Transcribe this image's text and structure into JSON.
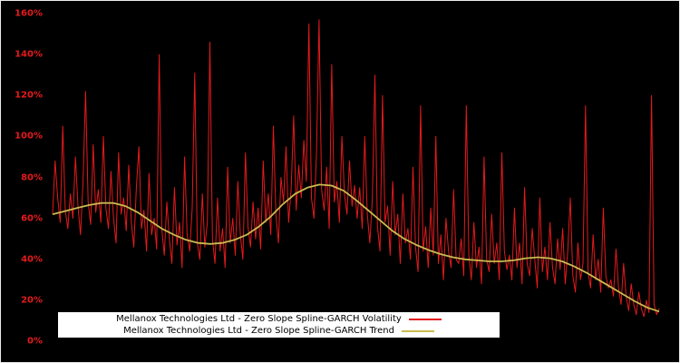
{
  "chart_data": {
    "type": "line",
    "title": "",
    "xlabel": "",
    "ylabel": "",
    "ylim": [
      0,
      160
    ],
    "grid": false,
    "background": "#000000",
    "axis_label_color": "#e41a1c",
    "legend_position": "bottom-left",
    "y_ticks": [
      "0%",
      "20%",
      "40%",
      "60%",
      "80%",
      "100%",
      "120%",
      "140%",
      "160%"
    ],
    "series": [
      {
        "name": "Mellanox Technologies Ltd - Zero Slope Spline-GARCH Volatility",
        "color": "#e41a1c",
        "stroke_width": 1,
        "values": [
          62,
          88,
          70,
          58,
          105,
          64,
          55,
          72,
          60,
          90,
          66,
          52,
          78,
          122,
          68,
          57,
          96,
          63,
          74,
          58,
          100,
          65,
          55,
          83,
          60,
          48,
          92,
          62,
          70,
          54,
          86,
          58,
          46,
          75,
          95,
          55,
          64,
          44,
          82,
          52,
          60,
          45,
          140,
          55,
          42,
          68,
          50,
          38,
          75,
          47,
          58,
          36,
          90,
          52,
          44,
          65,
          131,
          48,
          40,
          72,
          46,
          58,
          146,
          50,
          38,
          70,
          44,
          55,
          36,
          85,
          48,
          60,
          42,
          78,
          52,
          40,
          92,
          56,
          46,
          68,
          50,
          65,
          45,
          88,
          58,
          72,
          52,
          105,
          62,
          48,
          80,
          68,
          95,
          58,
          74,
          110,
          64,
          86,
          70,
          98,
          78,
          155,
          70,
          60,
          92,
          157,
          74,
          64,
          85,
          55,
          135,
          68,
          78,
          58,
          100,
          72,
          62,
          88,
          66,
          76,
          60,
          75,
          55,
          100,
          62,
          48,
          70,
          130,
          56,
          44,
          120,
          58,
          66,
          42,
          78,
          52,
          62,
          38,
          72,
          48,
          55,
          40,
          85,
          46,
          34,
          115,
          44,
          56,
          36,
          65,
          42,
          100,
          38,
          52,
          30,
          60,
          44,
          36,
          74,
          40,
          38,
          50,
          32,
          115,
          42,
          30,
          58,
          36,
          46,
          28,
          90,
          40,
          34,
          62,
          38,
          48,
          30,
          92,
          44,
          35,
          42,
          30,
          65,
          36,
          48,
          28,
          75,
          38,
          32,
          55,
          40,
          26,
          70,
          34,
          46,
          30,
          58,
          36,
          28,
          50,
          35,
          55,
          28,
          44,
          70,
          32,
          24,
          48,
          30,
          38,
          115,
          34,
          26,
          52,
          30,
          40,
          24,
          65,
          32,
          26,
          30,
          22,
          45,
          26,
          18,
          38,
          22,
          15,
          28,
          18,
          13,
          24,
          16,
          12,
          20,
          14,
          120,
          18,
          13,
          16
        ]
      },
      {
        "name": "Mellanox Technologies Ltd - Zero Slope Spline-GARCH Trend",
        "color": "#c8bc50",
        "stroke_width": 1.8,
        "values": [
          62,
          63.5,
          65,
          66.5,
          67.5,
          67.5,
          66,
          63,
          59,
          55,
          52,
          49.5,
          48,
          47.5,
          48,
          49.5,
          52,
          56,
          61,
          67,
          72,
          75,
          76.5,
          76,
          73.5,
          69,
          64,
          59,
          54,
          50,
          47,
          44.5,
          42.5,
          41,
          40,
          39.5,
          39,
          39,
          39.5,
          40.5,
          41,
          40.5,
          39,
          36.5,
          33.5,
          30,
          26.5,
          23,
          19.5,
          16.5,
          14.5
        ]
      }
    ]
  },
  "legend": {
    "volatility_label": "Mellanox Technologies Ltd - Zero Slope Spline-GARCH Volatility",
    "trend_label": "Mellanox Technologies Ltd - Zero Slope Spline-GARCH Trend"
  }
}
